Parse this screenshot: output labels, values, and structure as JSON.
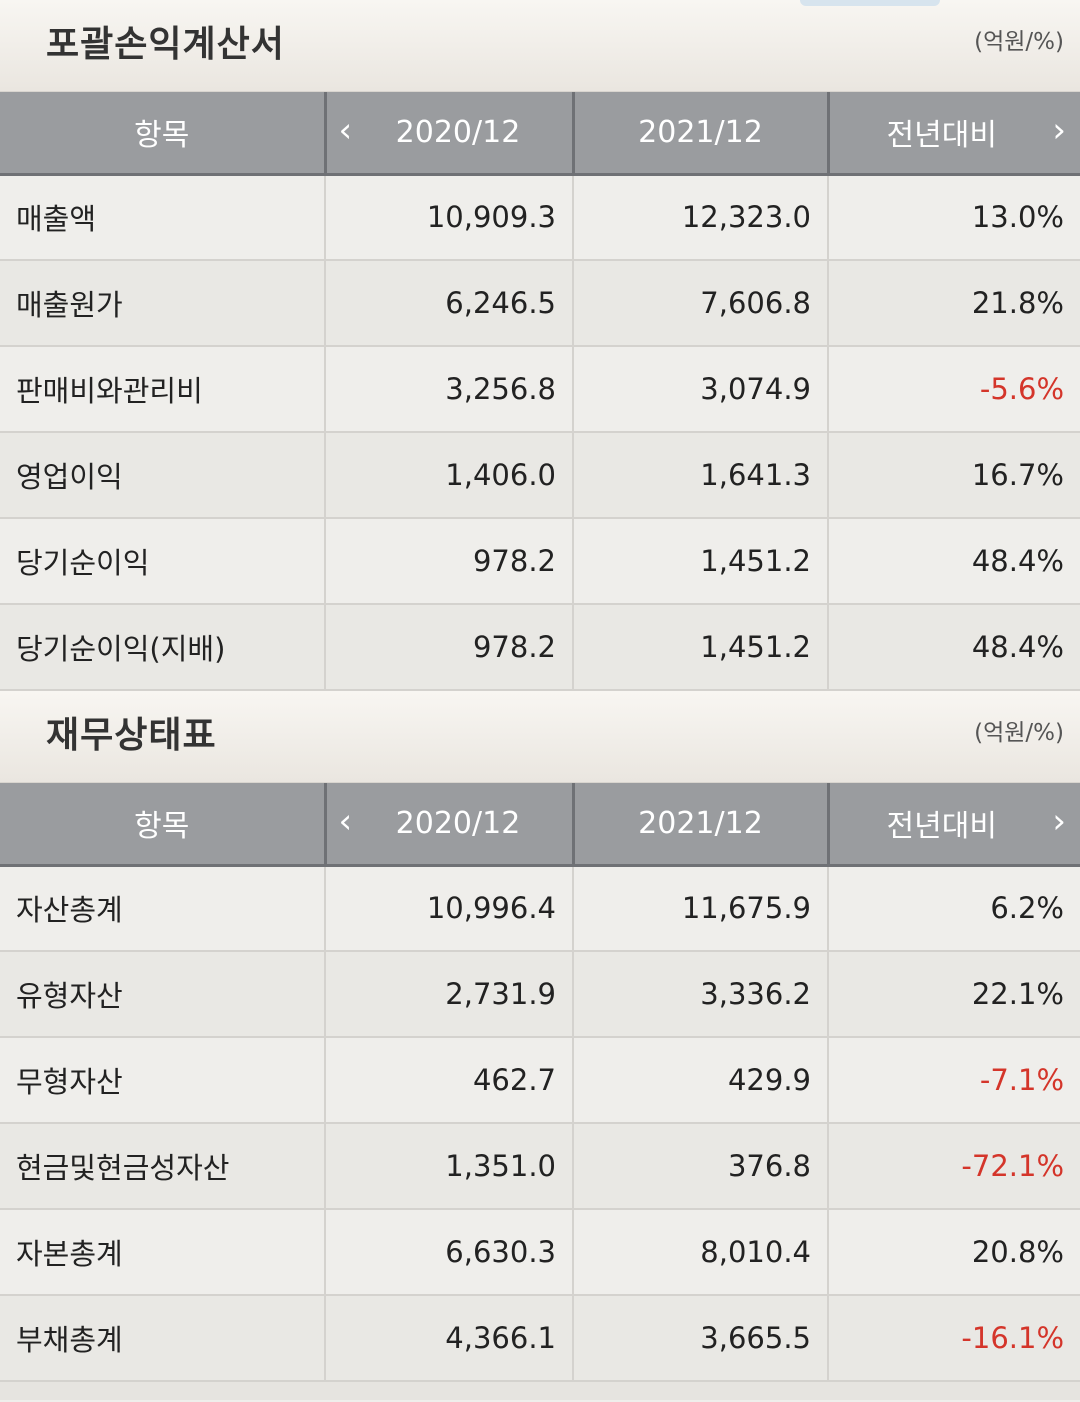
{
  "income": {
    "title": "포괄손익계산서",
    "unit": "(억원/%)",
    "headers": {
      "item": "항목",
      "year1": "2020/12",
      "year2": "2021/12",
      "change": "전년대비"
    },
    "rows": [
      {
        "item": "매출액",
        "y1": "10,909.3",
        "y2": "12,323.0",
        "chg": "13.0%"
      },
      {
        "item": "매출원가",
        "y1": "6,246.5",
        "y2": "7,606.8",
        "chg": "21.8%"
      },
      {
        "item": "판매비와관리비",
        "y1": "3,256.8",
        "y2": "3,074.9",
        "chg": "-5.6%"
      },
      {
        "item": "영업이익",
        "y1": "1,406.0",
        "y2": "1,641.3",
        "chg": "16.7%"
      },
      {
        "item": "당기순이익",
        "y1": "978.2",
        "y2": "1,451.2",
        "chg": "48.4%"
      },
      {
        "item": "당기순이익(지배)",
        "y1": "978.2",
        "y2": "1,451.2",
        "chg": "48.4%"
      }
    ]
  },
  "balance": {
    "title": "재무상태표",
    "unit": "(억원/%)",
    "headers": {
      "item": "항목",
      "year1": "2020/12",
      "year2": "2021/12",
      "change": "전년대비"
    },
    "rows": [
      {
        "item": "자산총계",
        "y1": "10,996.4",
        "y2": "11,675.9",
        "chg": "6.2%"
      },
      {
        "item": "유형자산",
        "y1": "2,731.9",
        "y2": "3,336.2",
        "chg": "22.1%"
      },
      {
        "item": "무형자산",
        "y1": "462.7",
        "y2": "429.9",
        "chg": "-7.1%"
      },
      {
        "item": "현금및현금성자산",
        "y1": "1,351.0",
        "y2": "376.8",
        "chg": "-72.1%"
      },
      {
        "item": "자본총계",
        "y1": "6,630.3",
        "y2": "8,010.4",
        "chg": "20.8%"
      },
      {
        "item": "부채총계",
        "y1": "4,366.1",
        "y2": "3,665.5",
        "chg": "-16.1%"
      }
    ]
  },
  "icons": {
    "prev": "chevron-left-icon",
    "next": "chevron-right-icon"
  },
  "colors": {
    "negative": "#d4352a",
    "header_bg": "#9a9c9f"
  }
}
